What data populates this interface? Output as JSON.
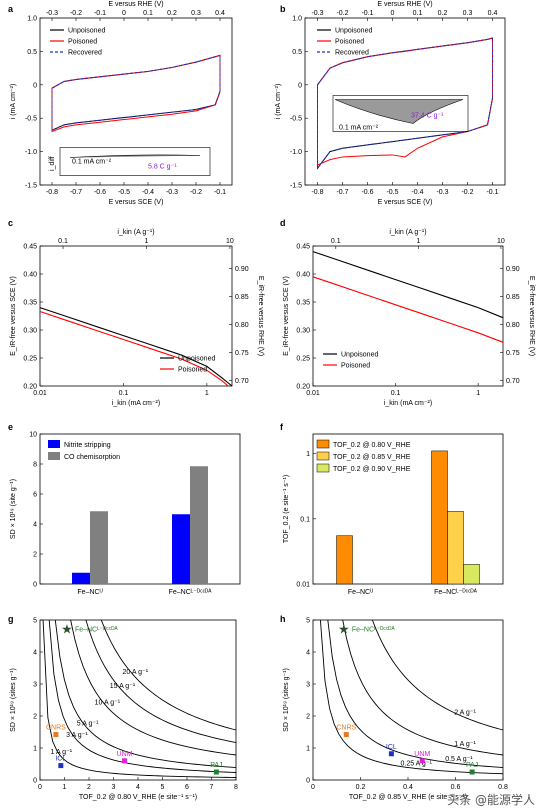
{
  "watermark": "头条 @能源学人",
  "chart_data": [
    {
      "panel": "a",
      "type": "line",
      "xlabel": "E versus SCE (V)",
      "xlabel_top": "E versus RHE (V)",
      "ylabel": "i (mA cm⁻²)",
      "xlim": [
        -0.85,
        -0.05
      ],
      "ylim": [
        -1.5,
        1.0
      ],
      "xticks": [
        "-0.8",
        "-0.7",
        "-0.6",
        "-0.5",
        "-0.4",
        "-0.3",
        "-0.2",
        "-0.1"
      ],
      "xticks_top": [
        "-0.3",
        "-0.2",
        "-0.1",
        "0",
        "0.1",
        "0.2",
        "0.3",
        "0.4"
      ],
      "yticks": [
        "-1.5",
        "-1.0",
        "-0.5",
        "0",
        "0.5",
        "1.0"
      ],
      "legend": [
        "Unpoisoned",
        "Poisoned",
        "Recovered"
      ],
      "annotations": [
        "i_diff",
        "0.1 mA cm⁻²",
        "5.8 C g⁻¹"
      ],
      "series": [
        {
          "name": "Unpoisoned",
          "color": "#000000",
          "x": [
            -0.8,
            -0.75,
            -0.7,
            -0.6,
            -0.5,
            -0.4,
            -0.3,
            -0.2,
            -0.12,
            -0.1
          ],
          "upper": [
            -0.05,
            0.05,
            0.08,
            0.12,
            0.16,
            0.2,
            0.26,
            0.34,
            0.42,
            0.44
          ],
          "lower": [
            -0.68,
            -0.6,
            -0.57,
            -0.53,
            -0.49,
            -0.45,
            -0.41,
            -0.37,
            -0.3,
            -0.1
          ]
        },
        {
          "name": "Poisoned",
          "color": "#ff0000",
          "x": [
            -0.8,
            -0.75,
            -0.7,
            -0.6,
            -0.5,
            -0.4,
            -0.3,
            -0.2,
            -0.12,
            -0.1
          ],
          "upper": [
            -0.05,
            0.05,
            0.08,
            0.12,
            0.16,
            0.2,
            0.26,
            0.34,
            0.42,
            0.44
          ],
          "lower": [
            -0.7,
            -0.63,
            -0.6,
            -0.56,
            -0.52,
            -0.48,
            -0.44,
            -0.39,
            -0.3,
            -0.1
          ]
        },
        {
          "name": "Recovered",
          "color": "#1a2fd0",
          "x": [
            -0.8,
            -0.75,
            -0.7,
            -0.6,
            -0.5,
            -0.4,
            -0.3,
            -0.2,
            -0.12,
            -0.1
          ],
          "upper": [
            -0.05,
            0.05,
            0.08,
            0.12,
            0.16,
            0.2,
            0.26,
            0.34,
            0.42,
            0.44
          ],
          "lower": [
            -0.68,
            -0.6,
            -0.57,
            -0.53,
            -0.49,
            -0.45,
            -0.41,
            -0.37,
            -0.3,
            -0.1
          ]
        }
      ]
    },
    {
      "panel": "b",
      "type": "line",
      "xlabel": "E versus SCE (V)",
      "xlabel_top": "E versus RHE (V)",
      "ylabel": "i (mA cm⁻²)",
      "xlim": [
        -0.85,
        -0.05
      ],
      "ylim": [
        -1.5,
        1.0
      ],
      "xticks": [
        "-0.8",
        "-0.7",
        "-0.6",
        "-0.5",
        "-0.4",
        "-0.3",
        "-0.2",
        "-0.1"
      ],
      "xticks_top": [
        "-0.3",
        "-0.2",
        "-0.1",
        "0",
        "0.1",
        "0.2",
        "0.3",
        "0.4"
      ],
      "yticks": [
        "-1.5",
        "-1.0",
        "-0.5",
        "0",
        "0.5",
        "1.0"
      ],
      "legend": [
        "Unpoisoned",
        "Poisoned",
        "Recovered"
      ],
      "annotations": [
        "0.1 mA cm⁻²",
        "37.4 C g⁻¹"
      ],
      "series": [
        {
          "name": "Unpoisoned",
          "color": "#000000",
          "x": [
            -0.8,
            -0.75,
            -0.7,
            -0.6,
            -0.5,
            -0.4,
            -0.3,
            -0.2,
            -0.12,
            -0.1
          ],
          "upper": [
            0.0,
            0.25,
            0.33,
            0.42,
            0.48,
            0.53,
            0.58,
            0.63,
            0.68,
            0.7
          ],
          "lower": [
            -1.25,
            -1.0,
            -0.95,
            -0.9,
            -0.85,
            -0.8,
            -0.75,
            -0.7,
            -0.6,
            -0.2
          ]
        },
        {
          "name": "Poisoned",
          "color": "#ff0000",
          "x": [
            -0.8,
            -0.75,
            -0.7,
            -0.6,
            -0.5,
            -0.45,
            -0.4,
            -0.3,
            -0.2,
            -0.12,
            -0.1
          ],
          "upper": [
            0.0,
            0.25,
            0.33,
            0.42,
            0.48,
            0.5,
            0.53,
            0.58,
            0.63,
            0.68,
            0.7
          ],
          "lower": [
            -1.2,
            -1.12,
            -1.08,
            -1.06,
            -1.05,
            -1.08,
            -0.95,
            -0.78,
            -0.7,
            -0.6,
            -0.2
          ]
        },
        {
          "name": "Recovered",
          "color": "#1a2fd0",
          "x": [
            -0.8,
            -0.75,
            -0.7,
            -0.6,
            -0.5,
            -0.4,
            -0.3,
            -0.2,
            -0.12,
            -0.1
          ],
          "upper": [
            0.0,
            0.25,
            0.33,
            0.42,
            0.48,
            0.53,
            0.58,
            0.63,
            0.68,
            0.7
          ],
          "lower": [
            -1.25,
            -1.0,
            -0.95,
            -0.9,
            -0.85,
            -0.8,
            -0.75,
            -0.7,
            -0.6,
            -0.2
          ]
        }
      ]
    },
    {
      "panel": "c",
      "type": "line",
      "xscale": "log",
      "xlabel": "i_kin (mA cm⁻²)",
      "xlabel_top": "i_kin (A g⁻¹)",
      "ylabel": "E_iR-free versus SCE (V)",
      "ylabel_right": "E_iR-free versus RHE (V)",
      "xlim": [
        0.01,
        2
      ],
      "ylim": [
        0.2,
        0.45
      ],
      "ylim_right": [
        0.69,
        0.94
      ],
      "xticks": [
        "0.01",
        "0.1",
        "1"
      ],
      "xticks_top": [
        "0.1",
        "1",
        "10"
      ],
      "yticks": [
        "0.20",
        "0.25",
        "0.30",
        "0.35",
        "0.40",
        "0.45"
      ],
      "yticks_right": [
        "0.70",
        "0.75",
        "0.80",
        "0.85",
        "0.90"
      ],
      "legend": [
        "Unpoisoned",
        "Poisoned"
      ],
      "series": [
        {
          "name": "Unpoisoned",
          "color": "#000000",
          "x": [
            0.01,
            0.02,
            0.05,
            0.1,
            0.2,
            0.5,
            1,
            1.5,
            2
          ],
          "y": [
            0.34,
            0.325,
            0.305,
            0.29,
            0.275,
            0.255,
            0.235,
            0.215,
            0.2
          ]
        },
        {
          "name": "Poisoned",
          "color": "#ff0000",
          "x": [
            0.01,
            0.02,
            0.05,
            0.1,
            0.2,
            0.5,
            1,
            1.5,
            1.8
          ],
          "y": [
            0.333,
            0.318,
            0.298,
            0.283,
            0.268,
            0.248,
            0.228,
            0.21,
            0.2
          ]
        }
      ]
    },
    {
      "panel": "d",
      "type": "line",
      "xscale": "log",
      "xlabel": "i_kin (mA cm⁻²)",
      "xlabel_top": "i_kin (A g⁻¹)",
      "ylabel": "E_iR-free versus SCE (V)",
      "ylabel_right": "E_iR-free versus RHE (V)",
      "xlim": [
        0.01,
        2
      ],
      "ylim": [
        0.2,
        0.45
      ],
      "ylim_right": [
        0.69,
        0.94
      ],
      "xticks": [
        "0.01",
        "0.1",
        "1"
      ],
      "xticks_top": [
        "0.1",
        "1",
        "10"
      ],
      "yticks": [
        "0.20",
        "0.25",
        "0.30",
        "0.35",
        "0.40",
        "0.45"
      ],
      "yticks_right": [
        "0.70",
        "0.75",
        "0.80",
        "0.85",
        "0.90"
      ],
      "legend": [
        "Unpoisoned",
        "Poisoned"
      ],
      "series": [
        {
          "name": "Unpoisoned",
          "color": "#000000",
          "x": [
            0.01,
            0.02,
            0.05,
            0.1,
            0.2,
            0.5,
            1,
            2
          ],
          "y": [
            0.44,
            0.425,
            0.405,
            0.39,
            0.375,
            0.355,
            0.34,
            0.322
          ]
        },
        {
          "name": "Poisoned",
          "color": "#ff0000",
          "x": [
            0.01,
            0.02,
            0.05,
            0.1,
            0.2,
            0.5,
            1,
            2
          ],
          "y": [
            0.395,
            0.38,
            0.36,
            0.345,
            0.33,
            0.31,
            0.295,
            0.278
          ]
        }
      ]
    },
    {
      "panel": "e",
      "type": "bar",
      "ylabel": "SD × 10¹⁹ (site g⁻¹)",
      "ylim": [
        0,
        10
      ],
      "yticks": [
        "0",
        "2",
        "4",
        "6",
        "8",
        "10"
      ],
      "categories": [
        "Fe–NCᵁ",
        "Fe–NCᴸ⁻ᴰᶜᶜᴰᴬ"
      ],
      "series": [
        {
          "name": "Nitrite stripping",
          "color": "#0000ff",
          "values": [
            0.75,
            4.65
          ]
        },
        {
          "name": "CO chemisorption",
          "color": "#808080",
          "values": [
            4.85,
            7.85
          ]
        }
      ]
    },
    {
      "panel": "f",
      "type": "bar",
      "yscale": "log",
      "ylabel": "TOF_0.2 (e site⁻¹ s⁻¹)",
      "ylim": [
        0.01,
        2
      ],
      "yticks": [
        "0.01",
        "0.1",
        "1"
      ],
      "categories": [
        "Fe–NCᵁ",
        "Fe–NCᴸ⁻ᴰᶜᶜᴰᴬ"
      ],
      "series": [
        {
          "name": "TOF_0.2 @ 0.80 V_RHE",
          "color": "#ff8c00",
          "values": [
            0.055,
            1.1
          ]
        },
        {
          "name": "TOF_0.2 @ 0.85 V_RHE",
          "color": "#ffd04a",
          "values": [
            null,
            0.13
          ]
        },
        {
          "name": "TOF_0.2 @ 0.90 V_RHE",
          "color": "#d8e860",
          "values": [
            null,
            0.02
          ]
        }
      ]
    },
    {
      "panel": "g",
      "type": "scatter",
      "xlabel": "TOF_0.2 @ 0.80 V_RHE (e site⁻¹ s⁻¹)",
      "ylabel": "SD × 10¹⁹ (sites g⁻¹)",
      "xlim": [
        0,
        8
      ],
      "ylim": [
        0,
        5
      ],
      "xticks": [
        "0",
        "1",
        "2",
        "3",
        "4",
        "5",
        "6",
        "7",
        "8"
      ],
      "yticks": [
        "0",
        "1",
        "2",
        "3",
        "4",
        "5"
      ],
      "iso_curves": [
        {
          "label": "1 A g⁻¹",
          "k": 0.625
        },
        {
          "label": "3 A g⁻¹",
          "k": 1.875
        },
        {
          "label": "5 A g⁻¹",
          "k": 3.12
        },
        {
          "label": "10 A g⁻¹",
          "k": 6.25
        },
        {
          "label": "15 A g⁻¹",
          "k": 9.37
        },
        {
          "label": "20 A g⁻¹",
          "k": 12.5
        }
      ],
      "points": [
        {
          "label": "Fe–NCᴸ⁻ᴰᶜᶜᴰᴬ",
          "x": 1.1,
          "y": 4.7,
          "color": "#2a7a2a",
          "marker": "star"
        },
        {
          "label": "CNRS",
          "x": 0.65,
          "y": 1.42,
          "color": "#e87820",
          "marker": "square"
        },
        {
          "label": "ICL",
          "x": 0.85,
          "y": 0.45,
          "color": "#2030c0",
          "marker": "square"
        },
        {
          "label": "UNM",
          "x": 3.45,
          "y": 0.6,
          "color": "#e020e0",
          "marker": "square"
        },
        {
          "label": "PAJ",
          "x": 7.2,
          "y": 0.25,
          "color": "#208030",
          "marker": "square"
        }
      ]
    },
    {
      "panel": "h",
      "type": "scatter",
      "xlabel": "TOF_0.2 @ 0.85 V_RHE (e site⁻¹ s⁻¹)",
      "ylabel": "SD × 10¹⁹ (sites g⁻¹)",
      "xlim": [
        0,
        0.8
      ],
      "ylim": [
        0,
        5
      ],
      "xticks": [
        "0",
        "0.2",
        "0.4",
        "0.6",
        "0.8"
      ],
      "yticks": [
        "0",
        "1",
        "2",
        "3",
        "4",
        "5"
      ],
      "iso_curves": [
        {
          "label": "0.25 A g⁻¹",
          "k": 0.156
        },
        {
          "label": "0.5 A g⁻¹",
          "k": 0.312
        },
        {
          "label": "1 A g⁻¹",
          "k": 0.625
        },
        {
          "label": "2 A g⁻¹",
          "k": 1.25
        }
      ],
      "points": [
        {
          "label": "Fe–NCᴸ⁻ᴰᶜᶜᴰᴬ",
          "x": 0.13,
          "y": 4.7,
          "color": "#2a7a2a",
          "marker": "star"
        },
        {
          "label": "CNRS",
          "x": 0.14,
          "y": 1.42,
          "color": "#e87820",
          "marker": "square"
        },
        {
          "label": "ICL",
          "x": 0.33,
          "y": 0.82,
          "color": "#2030c0",
          "marker": "square"
        },
        {
          "label": "UNM",
          "x": 0.46,
          "y": 0.6,
          "color": "#e020e0",
          "marker": "square"
        },
        {
          "label": "PAJ",
          "x": 0.67,
          "y": 0.25,
          "color": "#208030",
          "marker": "square"
        }
      ]
    }
  ]
}
